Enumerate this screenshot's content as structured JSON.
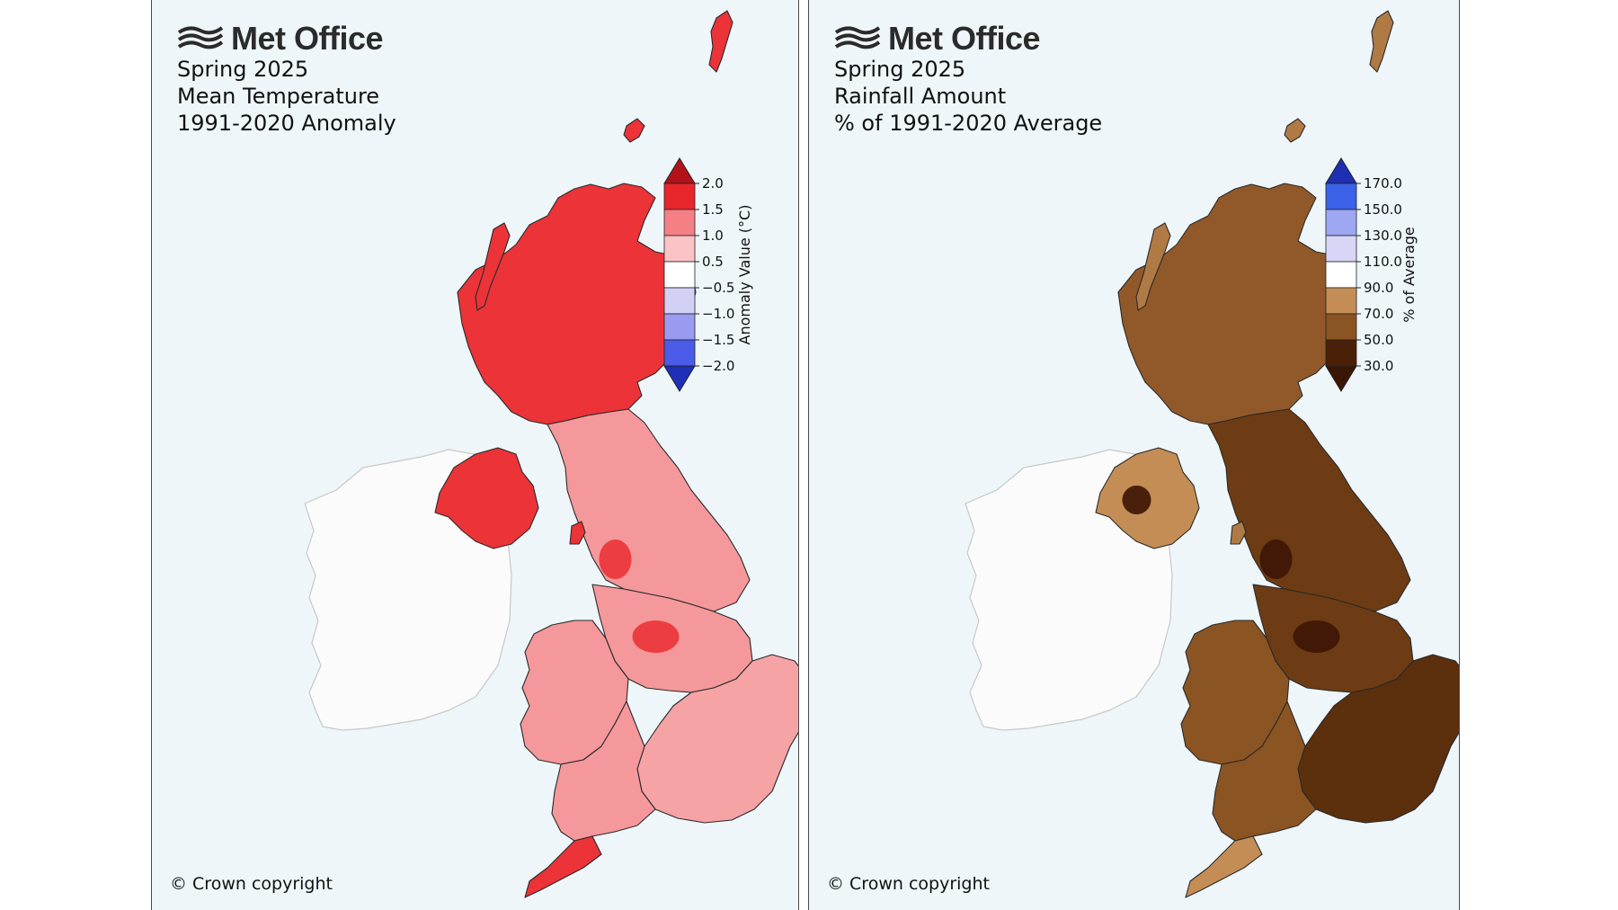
{
  "brand": {
    "name": "Met Office"
  },
  "panels": [
    {
      "id": "temperature",
      "title_lines": [
        "Spring 2025",
        "Mean Temperature",
        "1991-2020 Anomaly"
      ],
      "copyright": "© Crown copyright",
      "colorbar": {
        "label": "Anomaly Value (°C)",
        "ticks": [
          "2.0",
          "1.5",
          "1.0",
          "0.5",
          "−0.5",
          "−1.0",
          "−1.5",
          "−2.0"
        ],
        "bands": [
          "#e8262c",
          "#f47f84",
          "#fbc3c6",
          "#ffffff",
          "#d3d0f5",
          "#9a9bf0",
          "#4a5ce8"
        ],
        "extend_high": "#b3121a",
        "extend_low": "#1e2fb8"
      },
      "palette": {
        "scotland": "#eb3338",
        "ni": "#eb3338",
        "north_england": "#f5989b",
        "midlands": "#f5989b",
        "wales": "#f5989b",
        "south_east": "#f6a3a6",
        "south_west": "#f5989b",
        "cornwall": "#eb3338",
        "hotspot": "#eb3338",
        "isles": "#eb3338",
        "ireland": "#fbfbfb"
      }
    },
    {
      "id": "rainfall",
      "title_lines": [
        "Spring 2025",
        "Rainfall Amount",
        "% of 1991-2020 Average"
      ],
      "copyright": "© Crown copyright",
      "colorbar": {
        "label": "% of Average",
        "ticks": [
          "170.0",
          "150.0",
          "130.0",
          "110.0",
          "90.0",
          "70.0",
          "50.0",
          "30.0"
        ],
        "bands": [
          "#3b62e8",
          "#9ea7f1",
          "#d7d6f6",
          "#ffffff",
          "#c48d55",
          "#8b5423",
          "#4a2108"
        ],
        "extend_high": "#1f2fb3",
        "extend_low": "#3a1604"
      },
      "palette": {
        "scotland": "#91592a",
        "ni": "#c48d55",
        "north_england": "#6d3c14",
        "midlands": "#6d3c14",
        "wales": "#8b5423",
        "south_east": "#5c2f0d",
        "south_west": "#8b5423",
        "cornwall": "#c48d55",
        "hotspot": "#3d1404",
        "isles": "#b07a45",
        "ireland": "#fbfbfb"
      }
    }
  ]
}
